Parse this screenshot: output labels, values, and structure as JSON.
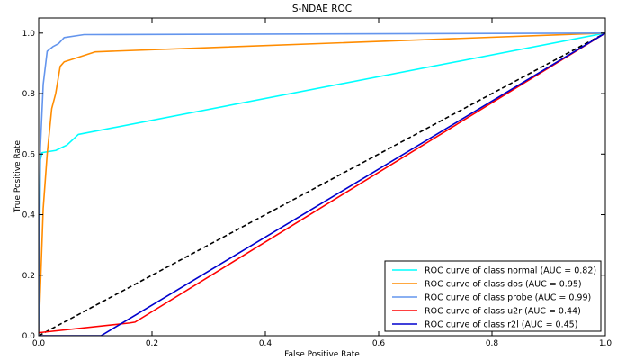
{
  "chart_data": {
    "type": "line",
    "title": "S-NDAE ROC",
    "xlabel": "False Positive Rate",
    "ylabel": "True Positive Rate",
    "xlim": [
      0.0,
      1.0
    ],
    "ylim": [
      0.0,
      1.05
    ],
    "xticks": [
      "0.0",
      "0.2",
      "0.4",
      "0.6",
      "0.8",
      "1.0"
    ],
    "yticks": [
      "0.0",
      "0.2",
      "0.4",
      "0.6",
      "0.8",
      "1.0"
    ],
    "grid": false,
    "legend_position": "lower-right",
    "series": [
      {
        "name": "ROC curve of class normal (AUC = 0.82)",
        "color": "#00ffff",
        "x": [
          0.0,
          0.003,
          0.006,
          0.03,
          0.05,
          0.07,
          1.0
        ],
        "y": [
          0.0,
          0.58,
          0.605,
          0.612,
          0.63,
          0.665,
          1.0
        ]
      },
      {
        "name": "ROC curve of class dos (AUC = 0.95)",
        "color": "#ff8c00",
        "x": [
          0.0,
          0.008,
          0.015,
          0.023,
          0.03,
          0.038,
          0.045,
          0.07,
          0.1,
          1.0
        ],
        "y": [
          0.0,
          0.42,
          0.6,
          0.75,
          0.8,
          0.89,
          0.905,
          0.92,
          0.938,
          1.0
        ]
      },
      {
        "name": "ROC curve of class probe (AUC = 0.99)",
        "color": "#6495ed",
        "x": [
          0.0,
          0.003,
          0.008,
          0.015,
          0.025,
          0.035,
          0.045,
          0.08,
          1.0
        ],
        "y": [
          0.0,
          0.62,
          0.83,
          0.94,
          0.955,
          0.965,
          0.985,
          0.995,
          1.0
        ]
      },
      {
        "name": "ROC curve of class u2r (AUC = 0.44)",
        "color": "#ff0000",
        "x": [
          0.0,
          0.16,
          0.17,
          1.0
        ],
        "y": [
          0.01,
          0.042,
          0.045,
          1.0
        ]
      },
      {
        "name": "ROC curve of class r2l (AUC = 0.45)",
        "color": "#0000cd",
        "x": [
          0.0,
          0.11,
          1.0
        ],
        "y": [
          0.0,
          0.0,
          1.0
        ]
      }
    ],
    "reference_line": {
      "x": [
        0.0,
        1.0
      ],
      "y": [
        0.0,
        1.0
      ],
      "color": "#000000",
      "style": "dashed"
    }
  }
}
